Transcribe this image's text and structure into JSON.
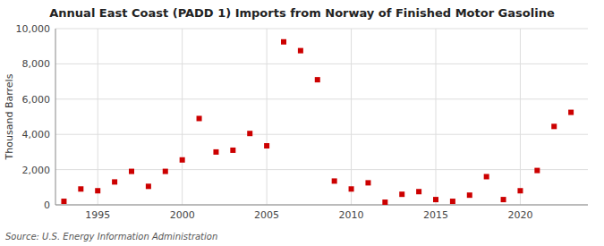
{
  "chart_data": {
    "type": "scatter",
    "title": "Annual East Coast (PADD 1) Imports from Norway of Finished Motor Gasoline",
    "ylabel": "Thousand Barrels",
    "source": "Source: U.S. Energy Information Administration",
    "x": [
      1993,
      1994,
      1995,
      1996,
      1997,
      1998,
      1999,
      2000,
      2001,
      2002,
      2003,
      2004,
      2005,
      2006,
      2007,
      2008,
      2009,
      2010,
      2011,
      2012,
      2013,
      2014,
      2015,
      2016,
      2017,
      2018,
      2019,
      2020,
      2021,
      2022,
      2023
    ],
    "values": [
      200,
      900,
      800,
      1300,
      1900,
      1050,
      1900,
      2550,
      4900,
      3000,
      3100,
      4050,
      3350,
      9250,
      8750,
      7100,
      1350,
      900,
      1250,
      150,
      600,
      750,
      300,
      200,
      550,
      1600,
      300,
      800,
      1950,
      4450,
      5250
    ],
    "color": "#cc0000",
    "marker": "square",
    "xlim": [
      1992.5,
      2024
    ],
    "xticks": [
      1995,
      2000,
      2005,
      2010,
      2015,
      2020
    ],
    "ylim": [
      0,
      10000
    ],
    "yticks": [
      0,
      {
        "value": 2000,
        "label": "2,000"
      },
      {
        "value": 4000,
        "label": "4,000"
      },
      {
        "value": 6000,
        "label": "6,000"
      },
      {
        "value": 8000,
        "label": "8,000"
      },
      {
        "value": 10000,
        "label": "10,000"
      }
    ],
    "grid": true
  }
}
